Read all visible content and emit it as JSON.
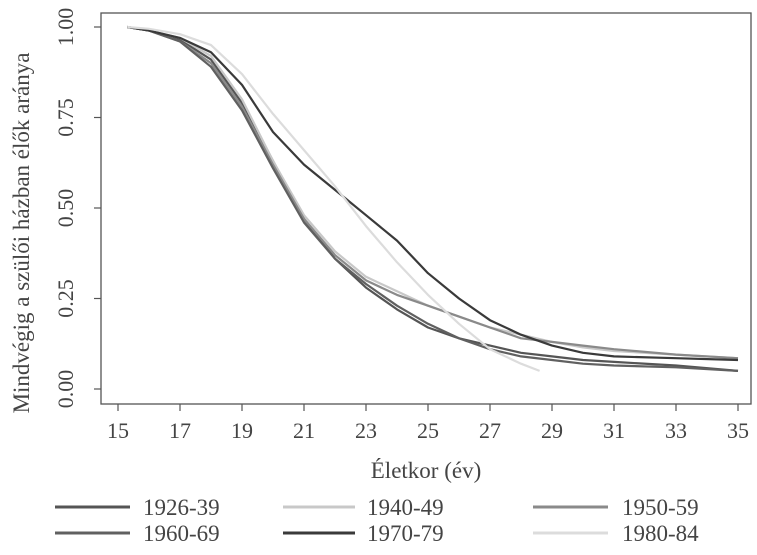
{
  "chart_data": {
    "type": "line",
    "xlabel": "Életkor (év)",
    "ylabel": "Mindvégig a szülői házban élők aránya",
    "xlim": [
      15,
      35
    ],
    "ylim": [
      0,
      1
    ],
    "x_ticks": [
      15,
      17,
      19,
      21,
      23,
      25,
      27,
      29,
      31,
      33,
      35
    ],
    "x_tick_labels": [
      "15",
      "17",
      "19",
      "21",
      "23",
      "25",
      "27",
      "29",
      "31",
      "33",
      "35"
    ],
    "y_ticks": [
      0,
      0.25,
      0.5,
      0.75,
      1
    ],
    "y_tick_labels": [
      "0.00",
      "0.25",
      "0.50",
      "0.75",
      "1.00"
    ],
    "grid": false,
    "legend_position": "bottom",
    "series": [
      {
        "name": "1926-39",
        "color": "#555555",
        "points": [
          [
            15.3,
            1.0
          ],
          [
            16,
            0.99
          ],
          [
            17,
            0.965
          ],
          [
            18,
            0.91
          ],
          [
            19,
            0.79
          ],
          [
            20,
            0.63
          ],
          [
            21,
            0.47
          ],
          [
            22,
            0.36
          ],
          [
            23,
            0.28
          ],
          [
            24,
            0.22
          ],
          [
            25,
            0.17
          ],
          [
            26,
            0.14
          ],
          [
            27,
            0.12
          ],
          [
            28,
            0.1
          ],
          [
            29,
            0.09
          ],
          [
            30,
            0.08
          ],
          [
            31,
            0.075
          ],
          [
            33,
            0.065
          ],
          [
            35,
            0.05
          ]
        ]
      },
      {
        "name": "1940-49",
        "color": "#c8c8c8",
        "points": [
          [
            15.3,
            1.0
          ],
          [
            16,
            0.99
          ],
          [
            17,
            0.97
          ],
          [
            18,
            0.92
          ],
          [
            19,
            0.8
          ],
          [
            20,
            0.63
          ],
          [
            21,
            0.48
          ],
          [
            22,
            0.38
          ],
          [
            23,
            0.31
          ],
          [
            24,
            0.27
          ],
          [
            25,
            0.23
          ],
          [
            26,
            0.2
          ],
          [
            27,
            0.17
          ],
          [
            28,
            0.15
          ],
          [
            29,
            0.13
          ],
          [
            30,
            0.115
          ],
          [
            31,
            0.105
          ],
          [
            33,
            0.095
          ],
          [
            35,
            0.085
          ]
        ]
      },
      {
        "name": "1950-59",
        "color": "#8a8a8a",
        "points": [
          [
            15.3,
            1.0
          ],
          [
            16,
            0.99
          ],
          [
            17,
            0.96
          ],
          [
            18,
            0.9
          ],
          [
            19,
            0.78
          ],
          [
            20,
            0.62
          ],
          [
            21,
            0.47
          ],
          [
            22,
            0.37
          ],
          [
            23,
            0.3
          ],
          [
            24,
            0.26
          ],
          [
            25,
            0.23
          ],
          [
            26,
            0.2
          ],
          [
            27,
            0.17
          ],
          [
            28,
            0.14
          ],
          [
            29,
            0.13
          ],
          [
            30,
            0.12
          ],
          [
            31,
            0.11
          ],
          [
            33,
            0.095
          ],
          [
            35,
            0.085
          ]
        ]
      },
      {
        "name": "1960-69",
        "color": "#606060",
        "points": [
          [
            15.3,
            1.0
          ],
          [
            16,
            0.99
          ],
          [
            17,
            0.96
          ],
          [
            18,
            0.89
          ],
          [
            19,
            0.77
          ],
          [
            20,
            0.61
          ],
          [
            21,
            0.46
          ],
          [
            22,
            0.36
          ],
          [
            23,
            0.29
          ],
          [
            24,
            0.23
          ],
          [
            25,
            0.18
          ],
          [
            26,
            0.14
          ],
          [
            27,
            0.11
          ],
          [
            28,
            0.09
          ],
          [
            29,
            0.08
          ],
          [
            30,
            0.07
          ],
          [
            31,
            0.065
          ],
          [
            33,
            0.06
          ],
          [
            35,
            0.05
          ]
        ]
      },
      {
        "name": "1970-79",
        "color": "#3a3a3a",
        "points": [
          [
            15.3,
            1.0
          ],
          [
            16,
            0.99
          ],
          [
            17,
            0.97
          ],
          [
            18,
            0.93
          ],
          [
            19,
            0.84
          ],
          [
            20,
            0.71
          ],
          [
            21,
            0.62
          ],
          [
            22,
            0.55
          ],
          [
            23,
            0.48
          ],
          [
            24,
            0.41
          ],
          [
            25,
            0.32
          ],
          [
            26,
            0.25
          ],
          [
            27,
            0.19
          ],
          [
            28,
            0.15
          ],
          [
            29,
            0.12
          ],
          [
            30,
            0.1
          ],
          [
            31,
            0.09
          ],
          [
            33,
            0.085
          ],
          [
            35,
            0.08
          ]
        ]
      },
      {
        "name": "1980-84",
        "color": "#dcdcdc",
        "points": [
          [
            15.3,
            1.0
          ],
          [
            16,
            0.995
          ],
          [
            17,
            0.98
          ],
          [
            18,
            0.95
          ],
          [
            19,
            0.87
          ],
          [
            20,
            0.76
          ],
          [
            21,
            0.66
          ],
          [
            22,
            0.56
          ],
          [
            23,
            0.45
          ],
          [
            24,
            0.35
          ],
          [
            25,
            0.26
          ],
          [
            26,
            0.18
          ],
          [
            27,
            0.11
          ],
          [
            28,
            0.07
          ],
          [
            28.6,
            0.05
          ]
        ]
      }
    ]
  }
}
